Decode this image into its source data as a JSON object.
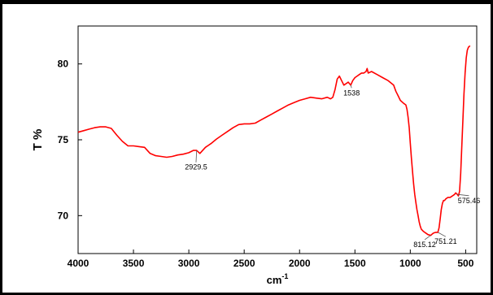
{
  "chart_data": {
    "type": "line",
    "xlabel": "cm",
    "xlabel_superscript": "-1",
    "ylabel": "T %",
    "xlim": [
      4000,
      400
    ],
    "ylim": [
      67.5,
      82.5
    ],
    "x_ticks": [
      4000,
      3500,
      3000,
      2500,
      2000,
      1500,
      1000,
      500
    ],
    "y_ticks": [
      70,
      75,
      80
    ],
    "grid": false,
    "series": [
      {
        "color": "#ff0000",
        "points": [
          [
            4000,
            75.5
          ],
          [
            3950,
            75.6
          ],
          [
            3900,
            75.7
          ],
          [
            3850,
            75.8
          ],
          [
            3800,
            75.85
          ],
          [
            3750,
            75.85
          ],
          [
            3700,
            75.75
          ],
          [
            3650,
            75.3
          ],
          [
            3600,
            74.9
          ],
          [
            3550,
            74.6
          ],
          [
            3500,
            74.6
          ],
          [
            3450,
            74.55
          ],
          [
            3400,
            74.5
          ],
          [
            3350,
            74.1
          ],
          [
            3300,
            73.95
          ],
          [
            3250,
            73.9
          ],
          [
            3200,
            73.85
          ],
          [
            3150,
            73.9
          ],
          [
            3100,
            74.0
          ],
          [
            3050,
            74.05
          ],
          [
            3000,
            74.15
          ],
          [
            2960,
            74.3
          ],
          [
            2929.5,
            74.3
          ],
          [
            2900,
            74.1
          ],
          [
            2850,
            74.5
          ],
          [
            2800,
            74.75
          ],
          [
            2750,
            75.05
          ],
          [
            2700,
            75.3
          ],
          [
            2650,
            75.55
          ],
          [
            2600,
            75.8
          ],
          [
            2550,
            76.0
          ],
          [
            2500,
            76.05
          ],
          [
            2450,
            76.05
          ],
          [
            2400,
            76.1
          ],
          [
            2350,
            76.3
          ],
          [
            2300,
            76.5
          ],
          [
            2250,
            76.7
          ],
          [
            2200,
            76.9
          ],
          [
            2150,
            77.1
          ],
          [
            2100,
            77.3
          ],
          [
            2050,
            77.45
          ],
          [
            2000,
            77.6
          ],
          [
            1950,
            77.7
          ],
          [
            1900,
            77.8
          ],
          [
            1850,
            77.75
          ],
          [
            1800,
            77.7
          ],
          [
            1750,
            77.8
          ],
          [
            1720,
            77.7
          ],
          [
            1700,
            77.8
          ],
          [
            1680,
            78.3
          ],
          [
            1660,
            79.0
          ],
          [
            1640,
            79.2
          ],
          [
            1620,
            78.9
          ],
          [
            1600,
            78.6
          ],
          [
            1580,
            78.7
          ],
          [
            1560,
            78.8
          ],
          [
            1538,
            78.6
          ],
          [
            1520,
            78.9
          ],
          [
            1500,
            79.1
          ],
          [
            1480,
            79.2
          ],
          [
            1460,
            79.3
          ],
          [
            1440,
            79.4
          ],
          [
            1420,
            79.4
          ],
          [
            1400,
            79.5
          ],
          [
            1390,
            79.7
          ],
          [
            1380,
            79.4
          ],
          [
            1350,
            79.5
          ],
          [
            1300,
            79.3
          ],
          [
            1250,
            79.1
          ],
          [
            1200,
            78.9
          ],
          [
            1150,
            78.6
          ],
          [
            1130,
            78.2
          ],
          [
            1110,
            77.9
          ],
          [
            1090,
            77.6
          ],
          [
            1060,
            77.4
          ],
          [
            1040,
            77.3
          ],
          [
            1030,
            77.0
          ],
          [
            1020,
            76.5
          ],
          [
            1010,
            75.8
          ],
          [
            1000,
            74.8
          ],
          [
            990,
            73.8
          ],
          [
            980,
            72.9
          ],
          [
            970,
            72.1
          ],
          [
            960,
            71.4
          ],
          [
            950,
            70.9
          ],
          [
            940,
            70.4
          ],
          [
            930,
            70.0
          ],
          [
            920,
            69.6
          ],
          [
            910,
            69.3
          ],
          [
            900,
            69.1
          ],
          [
            880,
            68.95
          ],
          [
            860,
            68.85
          ],
          [
            840,
            68.75
          ],
          [
            815.12,
            68.7
          ],
          [
            800,
            68.8
          ],
          [
            790,
            68.85
          ],
          [
            770,
            68.9
          ],
          [
            751.21,
            68.9
          ],
          [
            740,
            69.2
          ],
          [
            730,
            69.8
          ],
          [
            720,
            70.4
          ],
          [
            710,
            70.8
          ],
          [
            700,
            71.0
          ],
          [
            690,
            71.0
          ],
          [
            680,
            71.1
          ],
          [
            660,
            71.2
          ],
          [
            640,
            71.2
          ],
          [
            620,
            71.3
          ],
          [
            600,
            71.4
          ],
          [
            590,
            71.5
          ],
          [
            575.46,
            71.4
          ],
          [
            565,
            71.3
          ],
          [
            555,
            71.6
          ],
          [
            545,
            72.8
          ],
          [
            535,
            74.5
          ],
          [
            525,
            76.3
          ],
          [
            515,
            78.0
          ],
          [
            505,
            79.4
          ],
          [
            495,
            80.4
          ],
          [
            485,
            80.9
          ],
          [
            475,
            81.1
          ],
          [
            460,
            81.2
          ]
        ]
      }
    ],
    "annotations": [
      {
        "label": "2929.5",
        "x": 2929.5,
        "y": 74.3,
        "text_x": 2935,
        "text_y": 73.3
      },
      {
        "label": "1538",
        "x": 1538,
        "y": 78.6,
        "text_x": 1530,
        "text_y": 78.2
      },
      {
        "label": "815.12",
        "x": 815.12,
        "y": 68.7,
        "text_x": 870,
        "text_y": 68.2
      },
      {
        "label": "751.21",
        "x": 751.21,
        "y": 68.9,
        "text_x": 680,
        "text_y": 68.4
      },
      {
        "label": "575.46",
        "x": 575.46,
        "y": 71.4,
        "text_x": 470,
        "text_y": 71.1
      }
    ]
  }
}
